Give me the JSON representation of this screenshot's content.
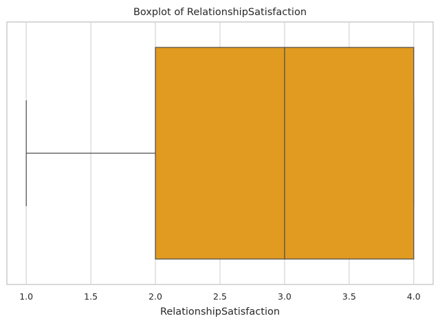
{
  "chart_data": {
    "type": "boxplot",
    "orientation": "horizontal",
    "title": "Boxplot of RelationshipSatisfaction",
    "xlabel": "RelationshipSatisfaction",
    "xlim": [
      0.85,
      4.15
    ],
    "x_ticks": [
      1.0,
      1.5,
      2.0,
      2.5,
      3.0,
      3.5,
      4.0
    ],
    "x_tick_labels": [
      "1.0",
      "1.5",
      "2.0",
      "2.5",
      "3.0",
      "3.5",
      "4.0"
    ],
    "grid": true,
    "box": {
      "whisker_low": 1.0,
      "q1": 2.0,
      "median": 3.0,
      "q3": 4.0,
      "whisker_high": 4.0
    },
    "colors": {
      "box_fill": "#e09b20",
      "line": "#4a4a4a",
      "grid": "#d4d4d4",
      "spine": "#cccccc",
      "text": "#262626"
    }
  }
}
